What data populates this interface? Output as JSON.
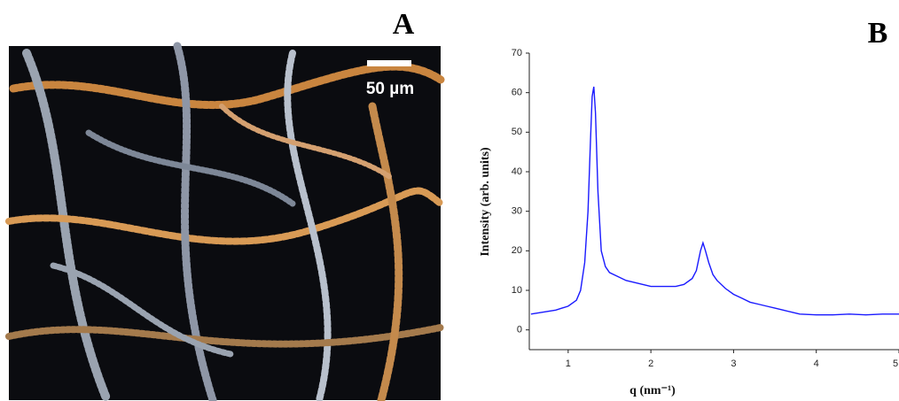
{
  "panel_a": {
    "label": "A",
    "scale_bar": "50 µm"
  },
  "chart_data": {
    "type": "line",
    "panel_label": "B",
    "x_label": "q (nm⁻¹)",
    "y_label": "Intensity (arb. units)",
    "x": [
      0.55,
      0.7,
      0.85,
      1.0,
      1.1,
      1.15,
      1.2,
      1.24,
      1.27,
      1.29,
      1.31,
      1.33,
      1.36,
      1.4,
      1.45,
      1.5,
      1.6,
      1.7,
      1.8,
      1.9,
      2.0,
      2.1,
      2.2,
      2.3,
      2.4,
      2.5,
      2.55,
      2.6,
      2.63,
      2.66,
      2.7,
      2.75,
      2.8,
      2.9,
      3.0,
      3.1,
      3.2,
      3.3,
      3.4,
      3.5,
      3.6,
      3.7,
      3.8,
      4.0,
      4.2,
      4.4,
      4.6,
      4.8,
      5.0
    ],
    "series": [
      {
        "color": "#1a1aff",
        "values": [
          4,
          4.5,
          5,
          6,
          7.5,
          10,
          17,
          30,
          48,
          59,
          61.5,
          55,
          35,
          20,
          16,
          14.5,
          13.5,
          12.5,
          12,
          11.5,
          11,
          11,
          11,
          11,
          11.5,
          13,
          15,
          20,
          22,
          20,
          17,
          14,
          12.5,
          10.5,
          9,
          8,
          7,
          6.5,
          6,
          5.5,
          5,
          4.5,
          4,
          3.8,
          3.8,
          4,
          3.8,
          4,
          4
        ]
      }
    ],
    "xlim": [
      0.53,
      5
    ],
    "ylim": [
      -5,
      70
    ],
    "xticks": [
      1,
      2,
      3,
      4,
      5
    ],
    "yticks": [
      0,
      10,
      20,
      30,
      40,
      50,
      60,
      70
    ]
  }
}
